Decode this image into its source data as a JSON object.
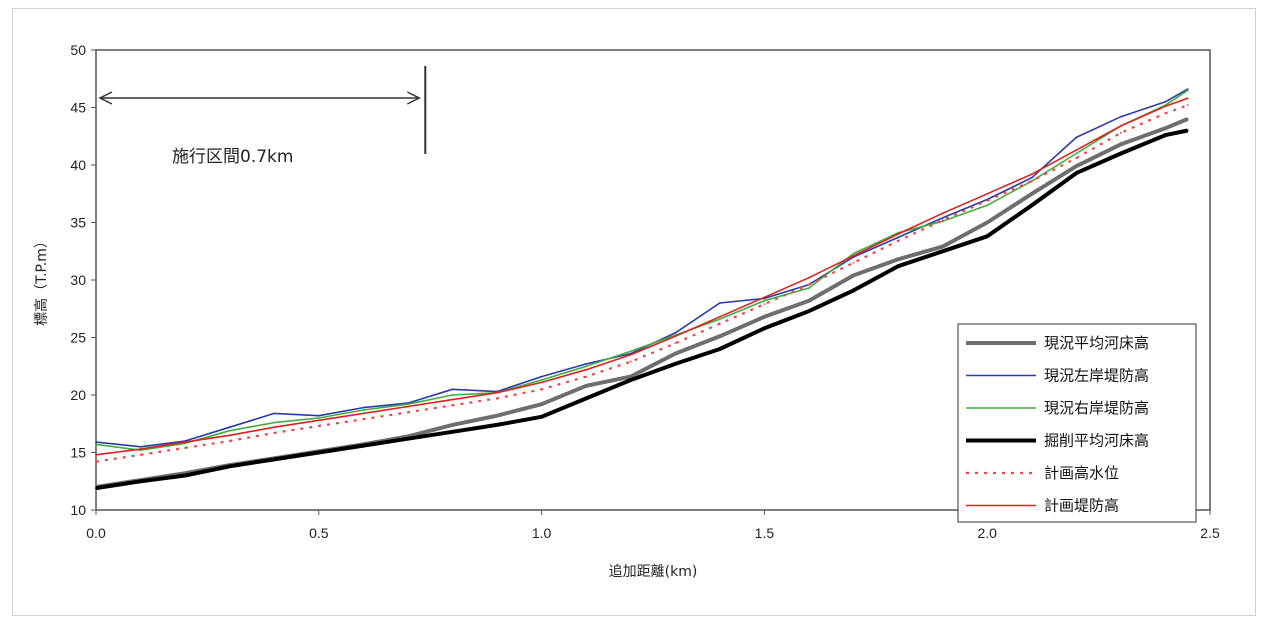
{
  "chart_data": {
    "type": "line",
    "title": "",
    "xlabel": "追加距離(km)",
    "ylabel": "標高（T.P.m）",
    "xlim": [
      0.0,
      2.5
    ],
    "ylim": [
      10,
      50
    ],
    "x_ticks": [
      "0.0",
      "0.5",
      "1.0",
      "1.5",
      "2.0",
      "2.5"
    ],
    "y_ticks": [
      "10",
      "15",
      "20",
      "25",
      "30",
      "35",
      "40",
      "45",
      "50"
    ],
    "grid": false,
    "legend_position": "bottom-right",
    "annotation": {
      "text": "施行区間0.7km",
      "from_km": 0.0,
      "to_km": 0.73
    },
    "x": [
      0.0,
      0.1,
      0.2,
      0.3,
      0.4,
      0.5,
      0.6,
      0.7,
      0.8,
      0.9,
      1.0,
      1.1,
      1.2,
      1.3,
      1.4,
      1.5,
      1.6,
      1.7,
      1.8,
      1.9,
      2.0,
      2.1,
      2.2,
      2.3,
      2.4,
      2.45
    ],
    "series": [
      {
        "name": "現況平均河床高",
        "color": "#6e6e6e",
        "style": "solid",
        "width": 4,
        "values": [
          12.0,
          12.6,
          13.2,
          13.9,
          14.5,
          15.1,
          15.7,
          16.4,
          17.4,
          18.2,
          19.2,
          20.8,
          21.6,
          23.6,
          25.1,
          26.8,
          28.2,
          30.4,
          31.8,
          32.9,
          35.0,
          37.5,
          39.9,
          41.8,
          43.2,
          44.0
        ]
      },
      {
        "name": "現況左岸堤防高",
        "color": "#2a3aa8",
        "style": "solid",
        "width": 1.6,
        "values": [
          15.9,
          15.5,
          16.0,
          17.2,
          18.4,
          18.2,
          18.9,
          19.3,
          20.5,
          20.3,
          21.6,
          22.7,
          23.6,
          25.4,
          28.0,
          28.4,
          29.6,
          32.0,
          33.7,
          35.4,
          37.0,
          38.9,
          42.4,
          44.2,
          45.5,
          46.6
        ]
      },
      {
        "name": "現況右岸堤防高",
        "color": "#3fae3f",
        "style": "solid",
        "width": 1.6,
        "values": [
          15.7,
          15.2,
          15.8,
          16.9,
          17.6,
          18.0,
          18.7,
          19.2,
          20.0,
          20.2,
          21.3,
          22.5,
          23.8,
          25.2,
          26.6,
          28.2,
          29.3,
          32.3,
          34.1,
          35.1,
          36.5,
          38.6,
          41.0,
          43.4,
          45.2,
          46.5
        ]
      },
      {
        "name": "掘削平均河床高",
        "color": "#000000",
        "style": "solid",
        "width": 4,
        "values": [
          11.9,
          12.5,
          13.0,
          13.8,
          14.4,
          15.0,
          15.6,
          16.2,
          16.8,
          17.4,
          18.1,
          19.7,
          21.3,
          22.7,
          24.0,
          25.8,
          27.3,
          29.1,
          31.2,
          32.5,
          33.8,
          36.5,
          39.3,
          41.0,
          42.6,
          43.0
        ]
      },
      {
        "name": "計画高水位",
        "color": "#e84a4a",
        "style": "dotted",
        "width": 2.2,
        "values": [
          14.2,
          14.8,
          15.4,
          16.0,
          16.7,
          17.3,
          17.9,
          18.5,
          19.1,
          19.7,
          20.5,
          21.6,
          22.9,
          24.5,
          26.2,
          27.9,
          29.6,
          31.5,
          33.4,
          35.2,
          36.9,
          38.6,
          40.6,
          42.8,
          44.5,
          45.2
        ]
      },
      {
        "name": "計画堤防高",
        "color": "#e02020",
        "style": "solid",
        "width": 1.6,
        "values": [
          14.8,
          15.3,
          15.9,
          16.5,
          17.2,
          17.8,
          18.4,
          19.0,
          19.6,
          20.2,
          21.1,
          22.2,
          23.5,
          25.1,
          26.8,
          28.5,
          30.2,
          32.1,
          34.0,
          35.8,
          37.5,
          39.2,
          41.3,
          43.4,
          45.1,
          45.8
        ]
      }
    ]
  }
}
